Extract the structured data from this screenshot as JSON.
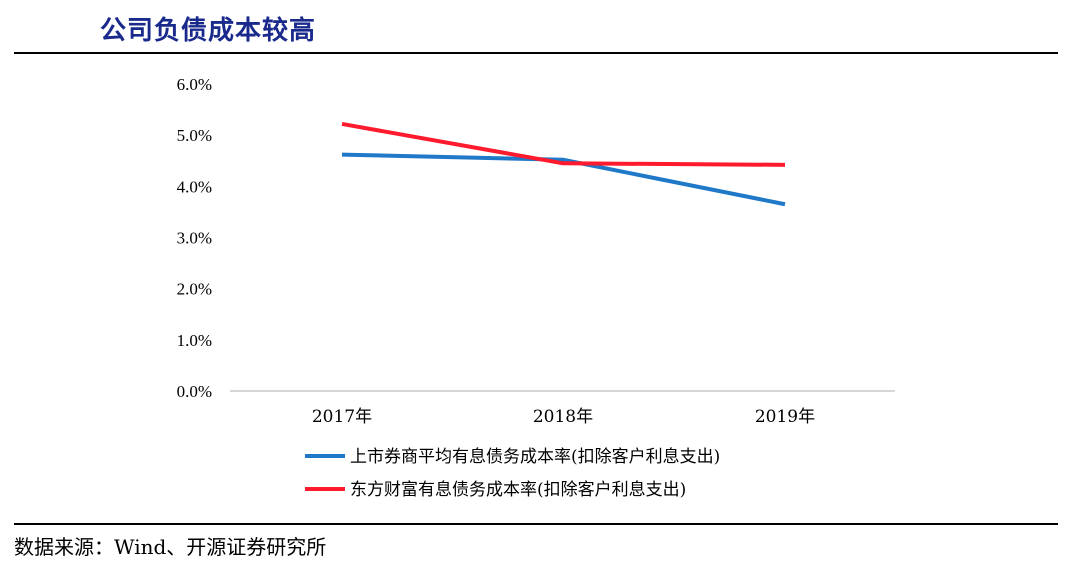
{
  "header": {
    "title": "公司负债成本较高"
  },
  "footer": {
    "source": "数据来源：Wind、开源证券研究所"
  },
  "chart_data": {
    "type": "line",
    "categories": [
      "2017年",
      "2018年",
      "2019年"
    ],
    "yticks": [
      "0.0%",
      "1.0%",
      "2.0%",
      "3.0%",
      "4.0%",
      "5.0%",
      "6.0%"
    ],
    "ylim": [
      0,
      6
    ],
    "unit": "%",
    "grid": false,
    "legend_position": "bottom",
    "series": [
      {
        "name": "上市券商平均有息债务成本率(扣除客户利息支出)",
        "color": "#1f78c8",
        "values": [
          4.62,
          4.52,
          3.65
        ]
      },
      {
        "name": "东方财富有息债务成本率(扣除客户利息支出)",
        "color": "#ff1a2e",
        "values": [
          5.22,
          4.45,
          4.42
        ]
      }
    ]
  }
}
